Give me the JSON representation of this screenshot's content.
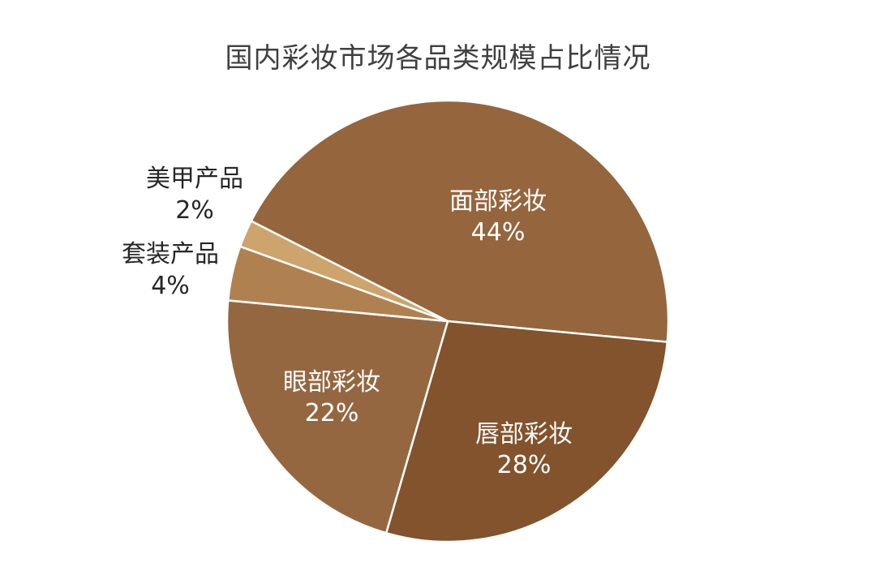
{
  "chart_data": {
    "type": "pie",
    "title": "国内彩妆市场各品类规模占比情况",
    "slices": [
      {
        "label": "面部彩妆",
        "value": 44,
        "value_label": "44%",
        "color": "#95653D",
        "label_position": "inside"
      },
      {
        "label": "唇部彩妆",
        "value": 28,
        "value_label": "28%",
        "color": "#82532C",
        "label_position": "inside"
      },
      {
        "label": "眼部彩妆",
        "value": 22,
        "value_label": "22%",
        "color": "#956741",
        "label_position": "inside"
      },
      {
        "label": "套装产品",
        "value": 4,
        "value_label": "4%",
        "color": "#B08150",
        "label_position": "outside"
      },
      {
        "label": "美甲产品",
        "value": 2,
        "value_label": "2%",
        "color": "#CCA46C",
        "label_position": "outside"
      }
    ]
  }
}
